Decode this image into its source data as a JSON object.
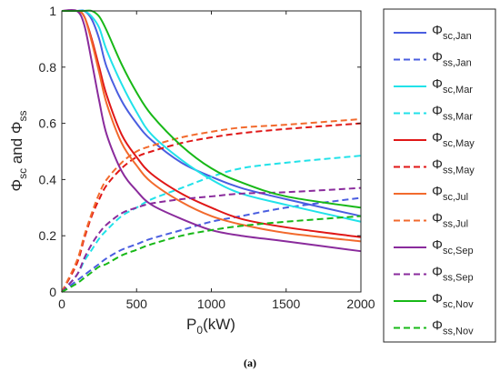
{
  "chart_data": {
    "type": "line",
    "xlabel": "P0(kW)",
    "xlabel_main": "P",
    "xlabel_sub": "0",
    "xlabel_unit": "(kW)",
    "ylabel": "Φsc and Φss",
    "ylabel_parts": {
      "phi": "Φ",
      "sub1": "sc",
      "and": " and ",
      "sub2": "ss"
    },
    "xlim": [
      0,
      2000
    ],
    "ylim": [
      0,
      1
    ],
    "xticks": [
      "0",
      "500",
      "1000",
      "1500",
      "2000"
    ],
    "xtick_values": [
      0,
      500,
      1000,
      1500,
      2000
    ],
    "yticks": [
      "0",
      "0.2",
      "0.4",
      "0.6",
      "0.8",
      "1"
    ],
    "ytick_values": [
      0,
      0.2,
      0.4,
      0.6,
      0.8,
      1
    ],
    "grid": false,
    "legend_position": "outside-right",
    "caption": "(a)",
    "x": [
      0,
      100,
      150,
      200,
      250,
      300,
      400,
      500,
      600,
      800,
      1000,
      1200,
      1500,
      2000
    ],
    "series": [
      {
        "name": "Φsc,Jan",
        "sub": "sc,Jan",
        "color": "#4a5ee0",
        "dash": false,
        "values": [
          1,
          1,
          1,
          0.97,
          0.9,
          0.8,
          0.68,
          0.6,
          0.54,
          0.46,
          0.41,
          0.37,
          0.33,
          0.27
        ]
      },
      {
        "name": "Φss,Jan",
        "sub": "ss,Jan",
        "color": "#4a5ee0",
        "dash": true,
        "values": [
          0,
          0.04,
          0.06,
          0.08,
          0.1,
          0.12,
          0.15,
          0.17,
          0.19,
          0.22,
          0.25,
          0.27,
          0.3,
          0.335
        ]
      },
      {
        "name": "Φsc,Mar",
        "sub": "sc,Mar",
        "color": "#21e2e9",
        "dash": false,
        "values": [
          1,
          1,
          1,
          0.98,
          0.94,
          0.86,
          0.74,
          0.64,
          0.56,
          0.47,
          0.4,
          0.35,
          0.31,
          0.25
        ]
      },
      {
        "name": "Φss,Mar",
        "sub": "ss,Mar",
        "color": "#21e2e9",
        "dash": true,
        "values": [
          0,
          0.06,
          0.11,
          0.15,
          0.19,
          0.22,
          0.27,
          0.3,
          0.33,
          0.37,
          0.41,
          0.44,
          0.46,
          0.485
        ]
      },
      {
        "name": "Φsc,May",
        "sub": "sc,May",
        "color": "#e01717",
        "dash": false,
        "values": [
          1,
          1,
          0.98,
          0.9,
          0.8,
          0.7,
          0.56,
          0.48,
          0.42,
          0.35,
          0.3,
          0.26,
          0.23,
          0.195
        ]
      },
      {
        "name": "Φss,May",
        "sub": "ss,May",
        "color": "#e01717",
        "dash": true,
        "values": [
          0,
          0.1,
          0.19,
          0.27,
          0.33,
          0.38,
          0.44,
          0.48,
          0.5,
          0.53,
          0.55,
          0.565,
          0.58,
          0.6
        ]
      },
      {
        "name": "Φsc,Jul",
        "sub": "sc,Jul",
        "color": "#f26a2d",
        "dash": false,
        "values": [
          1,
          1,
          0.98,
          0.89,
          0.78,
          0.67,
          0.53,
          0.45,
          0.39,
          0.32,
          0.27,
          0.24,
          0.21,
          0.18
        ]
      },
      {
        "name": "Φss,Jul",
        "sub": "ss,Jul",
        "color": "#f26a2d",
        "dash": true,
        "values": [
          0,
          0.11,
          0.2,
          0.28,
          0.35,
          0.4,
          0.46,
          0.5,
          0.52,
          0.55,
          0.57,
          0.585,
          0.595,
          0.615
        ]
      },
      {
        "name": "Φsc,Sep",
        "sub": "sc,Sep",
        "color": "#8a2b9c",
        "dash": false,
        "values": [
          1,
          1,
          0.95,
          0.82,
          0.68,
          0.56,
          0.43,
          0.36,
          0.31,
          0.26,
          0.22,
          0.2,
          0.18,
          0.145
        ]
      },
      {
        "name": "Φss,Sep",
        "sub": "ss,Sep",
        "color": "#8a2b9c",
        "dash": true,
        "values": [
          0,
          0.06,
          0.12,
          0.17,
          0.21,
          0.24,
          0.28,
          0.3,
          0.315,
          0.33,
          0.34,
          0.35,
          0.355,
          0.37
        ]
      },
      {
        "name": "Φsc,Nov",
        "sub": "sc,Nov",
        "color": "#17b817",
        "dash": false,
        "values": [
          1,
          1,
          1,
          1,
          0.98,
          0.93,
          0.81,
          0.71,
          0.63,
          0.52,
          0.44,
          0.39,
          0.34,
          0.3
        ]
      },
      {
        "name": "Φss,Nov",
        "sub": "ss,Nov",
        "color": "#17b817",
        "dash": true,
        "values": [
          0,
          0.03,
          0.05,
          0.07,
          0.09,
          0.1,
          0.13,
          0.15,
          0.17,
          0.2,
          0.22,
          0.235,
          0.25,
          0.27
        ]
      }
    ]
  }
}
